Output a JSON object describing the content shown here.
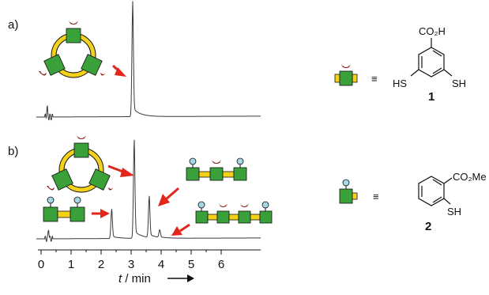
{
  "panels": {
    "a": "a)",
    "b": "b)"
  },
  "axis": {
    "ticks": [
      "0",
      "1",
      "2",
      "3",
      "4",
      "5",
      "6"
    ],
    "t_symbol": "t",
    "unit_text": " / min"
  },
  "legend": {
    "equiv": "≡",
    "compound1": {
      "number": "1",
      "top_group": "CO₂H",
      "left_group": "HS",
      "right_group": "SH"
    },
    "compound2": {
      "number": "2",
      "ester_group": "CO₂Me",
      "thiol_group": "SH"
    }
  },
  "chart_data": {
    "type": "line",
    "xlabel": "t / min",
    "xlim": [
      0,
      7
    ],
    "series": [
      {
        "peaks": [
          {
            "x": 0.2,
            "h": 0.1
          },
          {
            "x": 3.05,
            "h": 1.0
          }
        ]
      },
      {
        "peaks": [
          {
            "x": 0.25,
            "h": 0.12
          },
          {
            "x": 2.35,
            "h": 0.3
          },
          {
            "x": 3.1,
            "h": 1.0
          },
          {
            "x": 3.6,
            "h": 0.42
          },
          {
            "x": 3.95,
            "h": 0.08
          }
        ]
      }
    ]
  },
  "colors": {
    "arrow": "#e3251b",
    "block": "#3aa03a",
    "linker": "#f4d21a",
    "cap": "#8b1a1a",
    "ball": "#a6d7e6"
  }
}
